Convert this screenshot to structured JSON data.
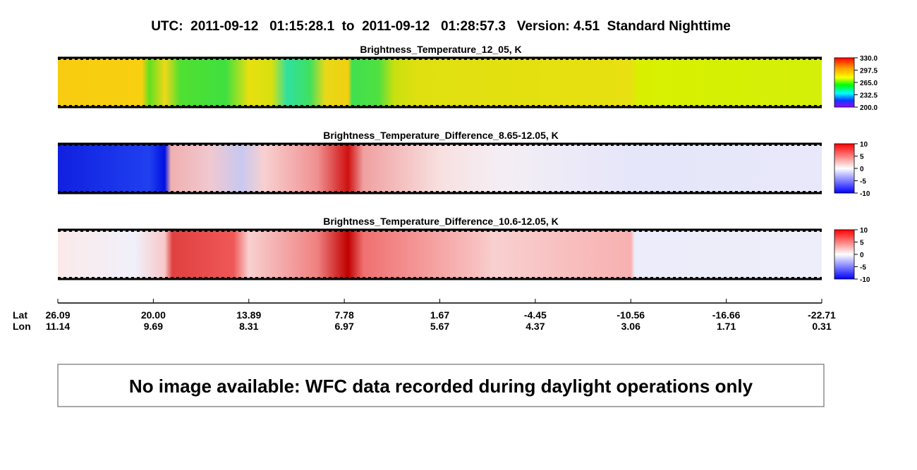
{
  "title": "UTC:  2011-09-12   01:15:28.1  to  2011-09-12   01:28:57.3   Version: 4.51  Standard Nighttime",
  "panels": [
    {
      "title": "Brightness_Temperature_12_05, K",
      "colorbar_ticks": [
        "330.0",
        "297.5",
        "265.0",
        "232.5",
        "200.0"
      ]
    },
    {
      "title": "Brightness_Temperature_Difference_8.65-12.05, K",
      "colorbar_ticks": [
        "10",
        "5",
        "0",
        "-5",
        "-10"
      ]
    },
    {
      "title": "Brightness_Temperature_Difference_10.6-12.05, K",
      "colorbar_ticks": [
        "10",
        "5",
        "0",
        "-5",
        "-10"
      ]
    }
  ],
  "axis": {
    "lat_label": "Lat",
    "lon_label": "Lon",
    "lat": [
      "26.09",
      "20.00",
      "13.89",
      "7.78",
      "1.67",
      "-4.45",
      "-10.56",
      "-16.66",
      "-22.71"
    ],
    "lon": [
      "11.14",
      "9.69",
      "8.31",
      "6.97",
      "5.67",
      "4.37",
      "3.06",
      "1.71",
      "0.31"
    ]
  },
  "message": "No image available: WFC data recorded during daylight operations only"
}
